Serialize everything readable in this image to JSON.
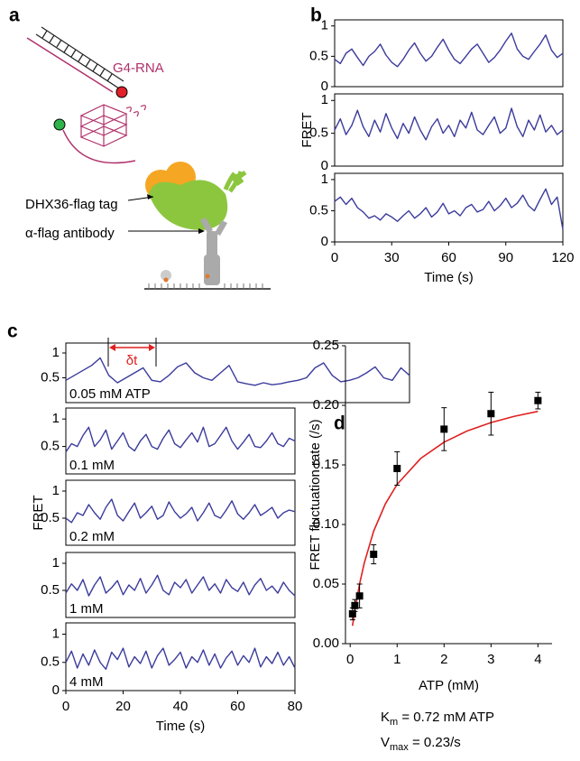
{
  "panel_labels": [
    "a",
    "b",
    "c",
    "d"
  ],
  "diagram": {
    "labels": [
      "G4-RNA",
      "DHX36-flag tag",
      "α-flag antibody"
    ]
  },
  "chart_data": [
    {
      "type": "line",
      "color": "#3b3b9c",
      "ylim": [
        0,
        1.1
      ],
      "yticks": [
        0,
        0.5,
        1
      ],
      "xlim": [
        0,
        120
      ],
      "x": [
        0,
        3,
        6,
        9,
        12,
        15,
        18,
        21,
        24,
        27,
        30,
        33,
        36,
        39,
        42,
        45,
        48,
        51,
        54,
        57,
        60,
        63,
        66,
        69,
        72,
        75,
        78,
        81,
        84,
        87,
        90,
        93,
        96,
        99,
        102,
        105,
        108,
        111,
        114,
        117,
        120
      ],
      "values": [
        0.45,
        0.38,
        0.55,
        0.62,
        0.48,
        0.35,
        0.5,
        0.58,
        0.7,
        0.52,
        0.4,
        0.33,
        0.45,
        0.6,
        0.72,
        0.55,
        0.42,
        0.5,
        0.65,
        0.78,
        0.6,
        0.45,
        0.38,
        0.5,
        0.62,
        0.7,
        0.55,
        0.4,
        0.48,
        0.6,
        0.75,
        0.88,
        0.62,
        0.5,
        0.45,
        0.58,
        0.7,
        0.85,
        0.6,
        0.48,
        0.55
      ]
    },
    {
      "type": "line",
      "color": "#3b3b9c",
      "ylim": [
        0,
        1.1
      ],
      "yticks": [
        0,
        0.5,
        1
      ],
      "xlim": [
        0,
        120
      ],
      "ylabel": "FRET",
      "x": [
        0,
        3,
        6,
        9,
        12,
        15,
        18,
        21,
        24,
        27,
        30,
        33,
        36,
        39,
        42,
        45,
        48,
        51,
        54,
        57,
        60,
        63,
        66,
        69,
        72,
        75,
        78,
        81,
        84,
        87,
        90,
        93,
        96,
        99,
        102,
        105,
        108,
        111,
        114,
        117,
        120
      ],
      "values": [
        0.55,
        0.72,
        0.48,
        0.62,
        0.85,
        0.6,
        0.45,
        0.7,
        0.52,
        0.8,
        0.58,
        0.42,
        0.65,
        0.5,
        0.75,
        0.55,
        0.4,
        0.6,
        0.72,
        0.5,
        0.62,
        0.45,
        0.7,
        0.58,
        0.82,
        0.55,
        0.48,
        0.62,
        0.75,
        0.5,
        0.58,
        0.88,
        0.6,
        0.45,
        0.7,
        0.55,
        0.78,
        0.52,
        0.62,
        0.48,
        0.55
      ]
    },
    {
      "type": "line",
      "color": "#3b3b9c",
      "ylim": [
        0,
        1.1
      ],
      "yticks": [
        0,
        0.5,
        1
      ],
      "xlim": [
        0,
        120
      ],
      "xticks": [
        0,
        30,
        60,
        90,
        120
      ],
      "xlabel": "Time (s)",
      "x": [
        0,
        3,
        6,
        9,
        12,
        15,
        18,
        21,
        24,
        27,
        30,
        33,
        36,
        39,
        42,
        45,
        48,
        51,
        54,
        57,
        60,
        63,
        66,
        69,
        72,
        75,
        78,
        81,
        84,
        87,
        90,
        93,
        96,
        99,
        102,
        105,
        108,
        111,
        114,
        117,
        120
      ],
      "values": [
        0.65,
        0.72,
        0.6,
        0.7,
        0.55,
        0.48,
        0.38,
        0.42,
        0.35,
        0.45,
        0.4,
        0.33,
        0.42,
        0.5,
        0.38,
        0.45,
        0.55,
        0.4,
        0.48,
        0.62,
        0.45,
        0.5,
        0.42,
        0.55,
        0.6,
        0.48,
        0.52,
        0.65,
        0.5,
        0.58,
        0.7,
        0.55,
        0.62,
        0.75,
        0.58,
        0.5,
        0.68,
        0.85,
        0.6,
        0.72,
        0.2
      ]
    },
    {
      "type": "line",
      "color": "#3b3b9c",
      "ylim": [
        0,
        1.2
      ],
      "yticks": [
        0.5,
        1
      ],
      "xlim": [
        0,
        120
      ],
      "annotation": "0.05 mM ATP",
      "interval_label": "δt",
      "x": [
        0,
        3,
        6,
        9,
        12,
        15,
        18,
        21,
        24,
        27,
        30,
        33,
        36,
        39,
        42,
        45,
        48,
        51,
        54,
        57,
        60,
        63,
        66,
        69,
        72,
        75,
        78,
        81,
        84,
        87,
        90,
        93,
        96,
        99,
        102,
        105,
        108,
        111,
        114,
        117,
        120
      ],
      "values": [
        0.45,
        0.55,
        0.65,
        0.75,
        0.9,
        0.55,
        0.4,
        0.5,
        0.6,
        0.7,
        0.45,
        0.42,
        0.55,
        0.72,
        0.8,
        0.6,
        0.5,
        0.45,
        0.6,
        0.75,
        0.42,
        0.38,
        0.35,
        0.4,
        0.36,
        0.38,
        0.42,
        0.45,
        0.5,
        0.7,
        0.8,
        0.55,
        0.42,
        0.45,
        0.5,
        0.6,
        0.72,
        0.5,
        0.45,
        0.7,
        0.55
      ]
    },
    {
      "type": "line",
      "color": "#3b3b9c",
      "ylim": [
        0,
        1.2
      ],
      "yticks": [
        0.5,
        1
      ],
      "xlim": [
        0,
        80
      ],
      "annotation": "0.1 mM",
      "x": [
        0,
        2,
        4,
        6,
        8,
        10,
        12,
        14,
        16,
        18,
        20,
        22,
        24,
        26,
        28,
        30,
        32,
        34,
        36,
        38,
        40,
        42,
        44,
        46,
        48,
        50,
        52,
        54,
        56,
        58,
        60,
        62,
        64,
        66,
        68,
        70,
        72,
        74,
        76,
        78,
        80
      ],
      "values": [
        0.4,
        0.55,
        0.5,
        0.7,
        0.85,
        0.5,
        0.62,
        0.8,
        0.45,
        0.6,
        0.75,
        0.5,
        0.42,
        0.6,
        0.72,
        0.5,
        0.45,
        0.65,
        0.8,
        0.55,
        0.48,
        0.62,
        0.75,
        0.58,
        0.85,
        0.5,
        0.55,
        0.7,
        0.85,
        0.6,
        0.45,
        0.58,
        0.72,
        0.5,
        0.48,
        0.6,
        0.75,
        0.55,
        0.5,
        0.65,
        0.6
      ]
    },
    {
      "type": "line",
      "color": "#3b3b9c",
      "ylim": [
        0,
        1.2
      ],
      "yticks": [
        0.5,
        1
      ],
      "xlim": [
        0,
        80
      ],
      "annotation": "0.2 mM",
      "ylabel": "FRET",
      "x": [
        0,
        2,
        4,
        6,
        8,
        10,
        12,
        14,
        16,
        18,
        20,
        22,
        24,
        26,
        28,
        30,
        32,
        34,
        36,
        38,
        40,
        42,
        44,
        46,
        48,
        50,
        52,
        54,
        56,
        58,
        60,
        62,
        64,
        66,
        68,
        70,
        72,
        74,
        76,
        78,
        80
      ],
      "values": [
        0.5,
        0.42,
        0.6,
        0.55,
        0.75,
        0.6,
        0.48,
        0.7,
        0.85,
        0.55,
        0.45,
        0.62,
        0.78,
        0.5,
        0.6,
        0.72,
        0.48,
        0.55,
        0.8,
        0.62,
        0.5,
        0.58,
        0.7,
        0.45,
        0.6,
        0.78,
        0.55,
        0.5,
        0.65,
        0.82,
        0.58,
        0.48,
        0.6,
        0.75,
        0.55,
        0.62,
        0.7,
        0.5,
        0.6,
        0.65,
        0.62
      ]
    },
    {
      "type": "line",
      "color": "#3b3b9c",
      "ylim": [
        0,
        1.2
      ],
      "yticks": [
        0.5,
        1
      ],
      "xlim": [
        0,
        80
      ],
      "annotation": "1 mM",
      "x": [
        0,
        2,
        4,
        6,
        8,
        10,
        12,
        14,
        16,
        18,
        20,
        22,
        24,
        26,
        28,
        30,
        32,
        34,
        36,
        38,
        40,
        42,
        44,
        46,
        48,
        50,
        52,
        54,
        56,
        58,
        60,
        62,
        64,
        66,
        68,
        70,
        72,
        74,
        76,
        78,
        80
      ],
      "values": [
        0.45,
        0.62,
        0.5,
        0.7,
        0.4,
        0.6,
        0.75,
        0.45,
        0.55,
        0.68,
        0.42,
        0.6,
        0.5,
        0.72,
        0.45,
        0.6,
        0.78,
        0.5,
        0.42,
        0.65,
        0.55,
        0.7,
        0.45,
        0.6,
        0.75,
        0.5,
        0.62,
        0.45,
        0.7,
        0.55,
        0.48,
        0.65,
        0.42,
        0.6,
        0.72,
        0.5,
        0.58,
        0.45,
        0.65,
        0.5,
        0.4
      ]
    },
    {
      "type": "line",
      "color": "#3b3b9c",
      "ylim": [
        0,
        1.2
      ],
      "yticks": [
        0,
        0.5,
        1
      ],
      "xlim": [
        0,
        80
      ],
      "annotation": "4 mM",
      "xticks": [
        0,
        20,
        40,
        60,
        80
      ],
      "xlabel": "Time (s)",
      "x": [
        0,
        2,
        4,
        6,
        8,
        10,
        12,
        14,
        16,
        18,
        20,
        22,
        24,
        26,
        28,
        30,
        32,
        34,
        36,
        38,
        40,
        42,
        44,
        46,
        48,
        50,
        52,
        54,
        56,
        58,
        60,
        62,
        64,
        66,
        68,
        70,
        72,
        74,
        76,
        78,
        80
      ],
      "values": [
        0.5,
        0.7,
        0.4,
        0.65,
        0.45,
        0.72,
        0.5,
        0.38,
        0.68,
        0.55,
        0.75,
        0.42,
        0.6,
        0.48,
        0.7,
        0.4,
        0.62,
        0.75,
        0.45,
        0.55,
        0.68,
        0.4,
        0.6,
        0.5,
        0.72,
        0.45,
        0.65,
        0.4,
        0.58,
        0.7,
        0.45,
        0.62,
        0.5,
        0.75,
        0.42,
        0.6,
        0.48,
        0.68,
        0.45,
        0.6,
        0.4
      ]
    },
    {
      "type": "scatter",
      "color": "#000000",
      "xlim": [
        -0.1,
        4.3
      ],
      "ylim": [
        0,
        0.25
      ],
      "xticks": [
        0,
        1,
        2,
        3,
        4
      ],
      "yticks": [
        {
          "value": 0,
          "label": "0.00"
        },
        {
          "value": 0.05,
          "label": "0.05"
        },
        {
          "value": 0.1,
          "label": "0.10"
        },
        {
          "value": 0.15,
          "label": "0.15"
        },
        {
          "value": 0.2,
          "label": "0.20"
        },
        {
          "value": 0.25,
          "label": "0.25"
        }
      ],
      "xlabel": "ATP (mM)",
      "ylabel": "FRET fluctuation rate (/s)",
      "x": [
        0.05,
        0.1,
        0.2,
        0.5,
        1,
        2,
        3,
        4
      ],
      "values": [
        0.025,
        0.032,
        0.04,
        0.075,
        0.147,
        0.18,
        0.193,
        0.204
      ],
      "errors": [
        0.005,
        0.005,
        0.01,
        0.008,
        0.014,
        0.018,
        0.018,
        0.007
      ],
      "fit": {
        "color": "#e02020",
        "x": [
          0.05,
          0.1,
          0.2,
          0.3,
          0.5,
          0.75,
          1,
          1.5,
          2,
          2.5,
          3,
          3.5,
          4
        ],
        "values": [
          0.0149,
          0.0281,
          0.05,
          0.0676,
          0.0943,
          0.1173,
          0.1337,
          0.1554,
          0.1691,
          0.1786,
          0.1855,
          0.1908,
          0.1949
        ]
      },
      "annotations": [
        {
          "main": "K",
          "sub": "m",
          "text": " = 0.72 mM ATP"
        },
        {
          "main": "V",
          "sub": "max",
          "text": " = 0.23/s"
        }
      ]
    }
  ]
}
